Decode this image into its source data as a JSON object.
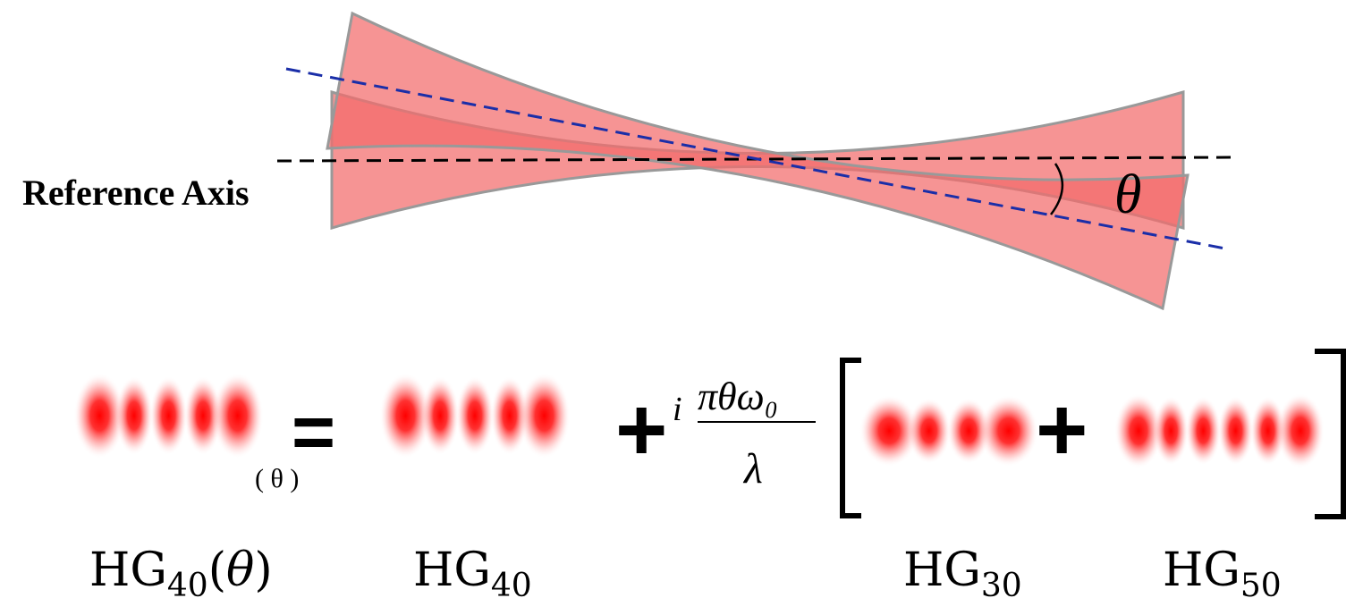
{
  "diagram": {
    "reference_axis_label": "Reference Axis",
    "angle_symbol": "θ",
    "equation": {
      "lhs_argument": "( θ )",
      "equals": "=",
      "plus": "+",
      "coefficient_i": "i",
      "coefficient_numerator": "πθω₀",
      "coefficient_denominator": "λ"
    },
    "mode_labels": [
      {
        "base": "HG",
        "sub": "40",
        "suffix_open": "(",
        "suffix_theta": "θ",
        "suffix_close": ")"
      },
      {
        "base": "HG",
        "sub": "40"
      },
      {
        "base": "HG",
        "sub": "30"
      },
      {
        "base": "HG",
        "sub": "50"
      }
    ],
    "mode_lobes": {
      "hg40": 5,
      "hg30": 4,
      "hg50": 6
    },
    "colors": {
      "beam_fill": "#f26b6b",
      "beam_stroke": "#999999",
      "tilted_axis": "#1a2ea8",
      "reference_axis": "#000000",
      "lobe": "#ff0000"
    }
  }
}
